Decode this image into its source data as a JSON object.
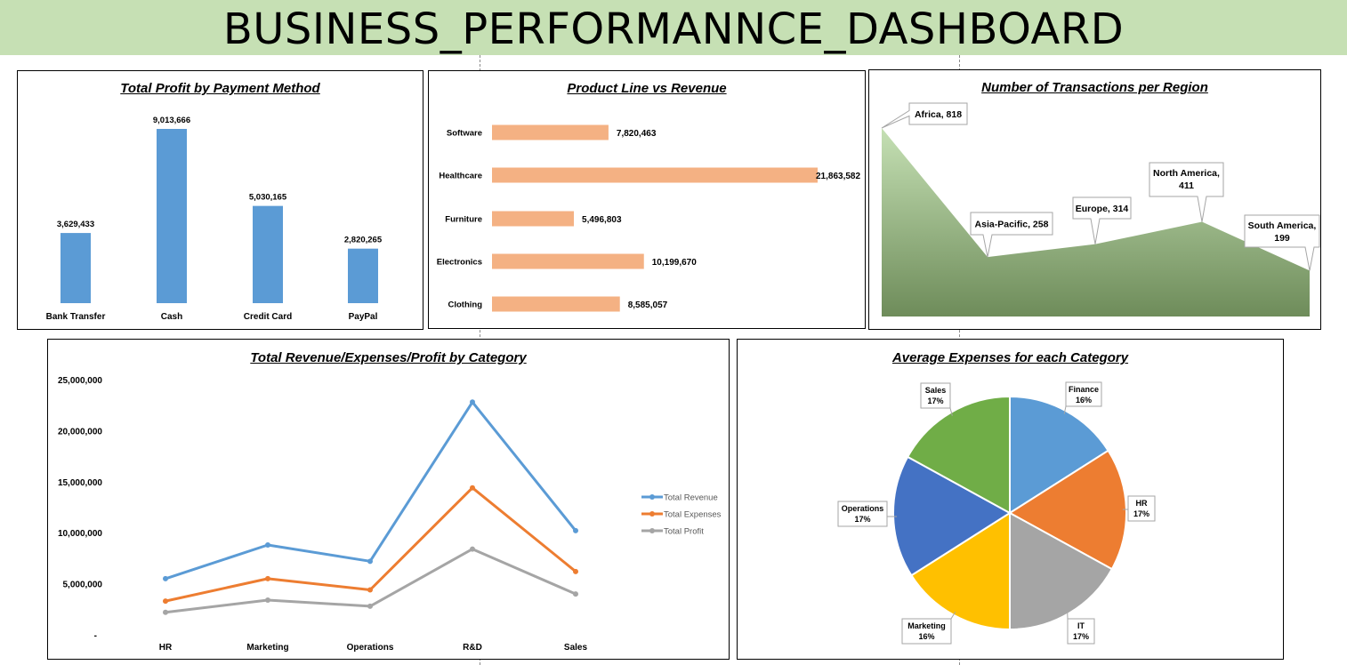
{
  "dashboard": {
    "title": "BUSINESS_PERFORMANNCE_DASHBOARD"
  },
  "colors": {
    "banner": "#c6e0b4",
    "bar_blue": "#5b9bd5",
    "bar_orange": "#f4b183",
    "area_top": "#c5e0b4",
    "area_bottom": "#6e8c5a",
    "line_revenue": "#5b9bd5",
    "line_expenses": "#ed7d31",
    "line_profit": "#a5a5a5"
  },
  "charts": {
    "payment": {
      "title": "Total Profit by Payment Method",
      "chart_data": {
        "type": "bar",
        "categories": [
          "Bank Transfer",
          "Cash",
          "Credit Card",
          "PayPal"
        ],
        "values": [
          3629433,
          9013666,
          5030165,
          2820265
        ],
        "value_labels": [
          "3,629,433",
          "9,013,666",
          "5,030,165",
          "2,820,265"
        ]
      }
    },
    "product": {
      "title": "Product Line vs Revenue",
      "chart_data": {
        "type": "bar",
        "orientation": "horizontal",
        "categories": [
          "Software",
          "Healthcare",
          "Furniture",
          "Electronics",
          "Clothing"
        ],
        "values": [
          7820463,
          21863582,
          5496803,
          10199670,
          8585057
        ],
        "value_labels": [
          "7,820,463",
          "21,863,582",
          "5,496,803",
          "10,199,670",
          "8,585,057"
        ]
      }
    },
    "region": {
      "title": "Number of Transactions per Region",
      "chart_data": {
        "type": "area",
        "categories": [
          "Africa",
          "Asia-Pacific",
          "Europe",
          "North America",
          "South America"
        ],
        "values": [
          818,
          258,
          314,
          411,
          199
        ],
        "callout_lines": [
          [
            "Africa, 818"
          ],
          [
            "Asia-Pacific, 258"
          ],
          [
            "Europe, 314"
          ],
          [
            "North America,",
            "411"
          ],
          [
            "South America,",
            "199"
          ]
        ]
      }
    },
    "category": {
      "title": "Total Revenue/Expenses/Profit by Category",
      "chart_data": {
        "type": "line",
        "categories": [
          "HR",
          "Marketing",
          "Operations",
          "R&D",
          "Sales"
        ],
        "ylim": [
          0,
          25000000
        ],
        "y_ticks": [
          {
            "value": 0,
            "label": "-"
          },
          {
            "value": 5000000,
            "label": "5,000,000"
          },
          {
            "value": 10000000,
            "label": "10,000,000"
          },
          {
            "value": 15000000,
            "label": "15,000,000"
          },
          {
            "value": 20000000,
            "label": "20,000,000"
          },
          {
            "value": 25000000,
            "label": "25,000,000"
          }
        ],
        "series": [
          {
            "name": "Total Revenue",
            "color": "#5b9bd5",
            "values": [
              5500000,
              8800000,
              7200000,
              22800000,
              10200000
            ]
          },
          {
            "name": "Total Expenses",
            "color": "#ed7d31",
            "values": [
              3300000,
              5500000,
              4400000,
              14400000,
              6200000
            ]
          },
          {
            "name": "Total Profit",
            "color": "#a5a5a5",
            "values": [
              2200000,
              3400000,
              2800000,
              8400000,
              4000000
            ]
          }
        ],
        "legend": "right"
      }
    },
    "expenses": {
      "title": "Average Expenses for each Category",
      "chart_data": {
        "type": "pie",
        "slices": [
          {
            "label": "Finance",
            "pct_label": "16%",
            "value": 16,
            "color": "#5b9bd5"
          },
          {
            "label": "HR",
            "pct_label": "17%",
            "value": 17,
            "color": "#ed7d31"
          },
          {
            "label": "IT",
            "pct_label": "17%",
            "value": 17,
            "color": "#a5a5a5"
          },
          {
            "label": "Marketing",
            "pct_label": "16%",
            "value": 16,
            "color": "#ffc000"
          },
          {
            "label": "Operations",
            "pct_label": "17%",
            "value": 17,
            "color": "#4472c4"
          },
          {
            "label": "Sales",
            "pct_label": "17%",
            "value": 17,
            "color": "#70ad47"
          }
        ]
      }
    }
  }
}
